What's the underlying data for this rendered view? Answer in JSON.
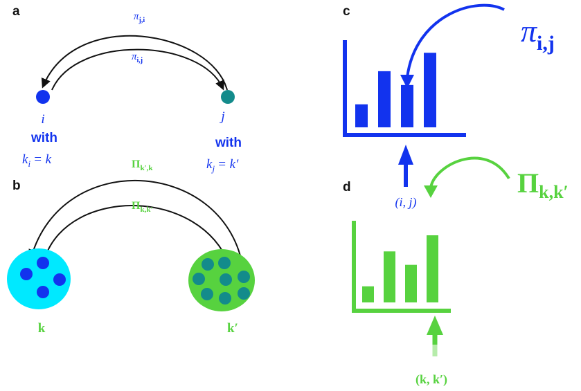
{
  "colors": {
    "blue": "#1233ee",
    "teal": "#138b8b",
    "cyan": "#00e9ff",
    "green": "#57d23f",
    "dark_green": "#2f9e2f",
    "black": "#111111"
  },
  "panels": {
    "a": {
      "label": "a"
    },
    "b": {
      "label": "b"
    },
    "c": {
      "label": "c"
    },
    "d": {
      "label": "d"
    }
  },
  "panel_a": {
    "rate_top": "π",
    "rate_top_sub": "j,i",
    "rate_bottom": "π",
    "rate_bottom_sub": "i,j",
    "node_i": {
      "name": "i",
      "with": "with",
      "cond_var": "k",
      "cond_sub": "i",
      "cond_rhs": "= k"
    },
    "node_j": {
      "name": "j",
      "with": "with",
      "cond_var": "k",
      "cond_sub": "j",
      "cond_rhs": "= k′"
    }
  },
  "panel_b": {
    "rate_top": "Π",
    "rate_top_sub": "k′,k",
    "rate_bottom": "Π",
    "rate_bottom_sub": "k,k′",
    "class_k": "k",
    "class_kp": "k′"
  },
  "panel_c": {
    "symbol": "π",
    "symbol_sub": "i,j",
    "index_label": "(i, j)",
    "bar_levels": [
      0.25,
      0.61,
      0.46,
      0.81
    ]
  },
  "panel_d": {
    "symbol": "Π",
    "symbol_sub": "k,k′",
    "index_label": "(k, k′)",
    "bar_levels": [
      0.24,
      0.76,
      0.56,
      1.0
    ]
  }
}
